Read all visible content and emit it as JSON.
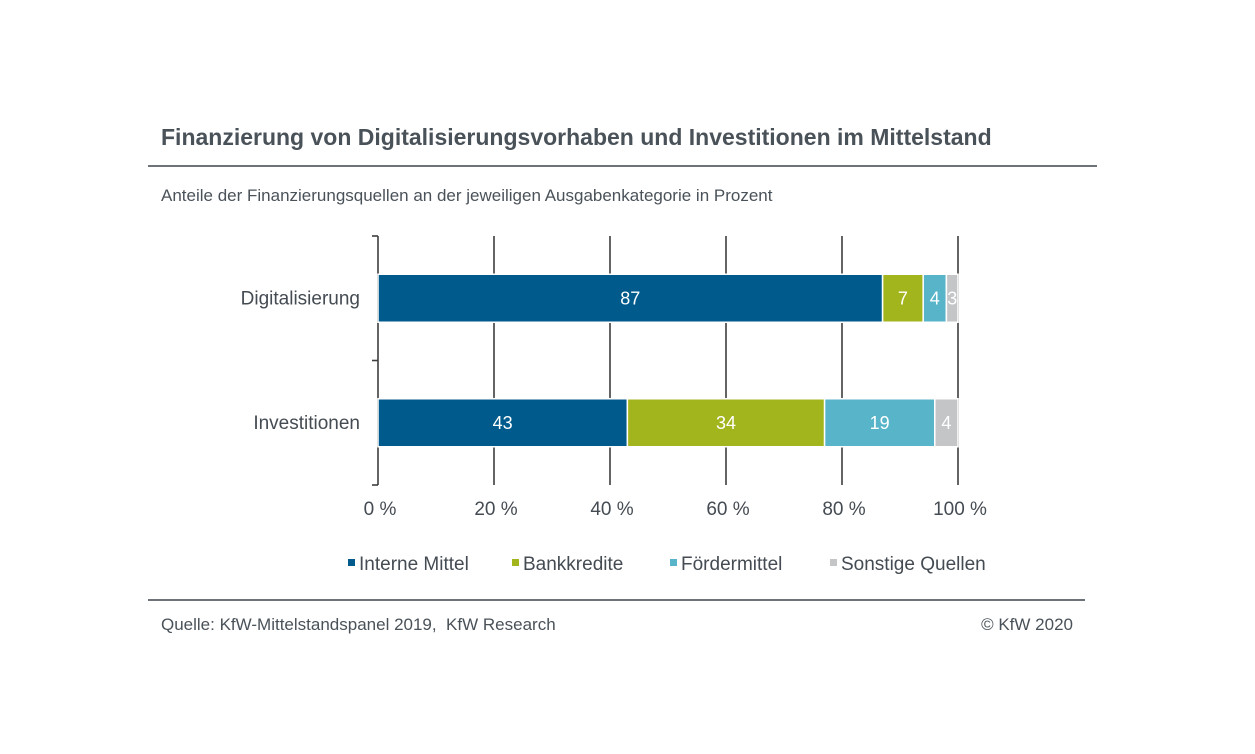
{
  "chart_data": {
    "type": "bar",
    "orientation": "horizontal",
    "stacked": true,
    "title": "Finanzierung von Digitalisierungsvorhaben und Investitionen im Mittelstand",
    "subtitle": "Anteile der Finanzierungsquellen an der jeweiligen Ausgabenkategorie in Prozent",
    "categories": [
      "Digitalisierung",
      "Investitionen"
    ],
    "series": [
      {
        "name": "Interne Mittel",
        "color": "#005a8c",
        "values": [
          87,
          43
        ]
      },
      {
        "name": "Bankkredite",
        "color": "#a3b51d",
        "values": [
          7,
          34
        ]
      },
      {
        "name": "Fördermittel",
        "color": "#58b5c9",
        "values": [
          4,
          19
        ]
      },
      {
        "name": "Sonstige Quellen",
        "color": "#c3c5c7",
        "values": [
          3,
          4
        ]
      }
    ],
    "xlim": [
      0,
      100
    ],
    "x_ticks": [
      "0 %",
      "20 %",
      "40 %",
      "60 %",
      "80 %",
      "100 %"
    ],
    "x_tick_values": [
      0,
      20,
      40,
      60,
      80,
      100
    ],
    "grid": true,
    "legend_position": "bottom",
    "xlabel": "",
    "ylabel": ""
  },
  "footer": {
    "source": "Quelle: KfW-Mittelstandspanel 2019,  KfW Research",
    "copyright": "© KfW 2020"
  }
}
